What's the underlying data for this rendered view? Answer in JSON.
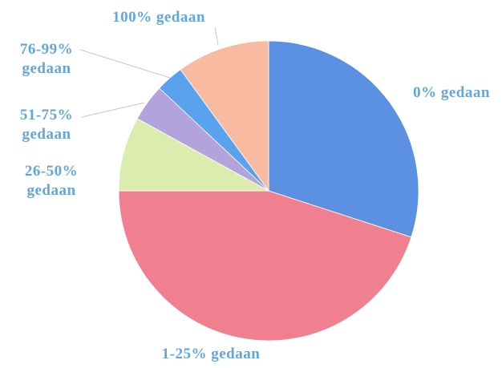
{
  "chart_data": {
    "type": "pie",
    "categories": [
      "0% gedaan",
      "1-25% gedaan",
      "26-50% gedaan",
      "51-75% gedaan",
      "76-99% gedaan",
      "100% gedaan"
    ],
    "values": [
      30,
      45,
      8,
      4,
      3,
      10
    ],
    "colors": [
      "#5c90e2",
      "#f07f8f",
      "#dbecae",
      "#b3a3dd",
      "#5ba2ee",
      "#f9baa2"
    ]
  }
}
